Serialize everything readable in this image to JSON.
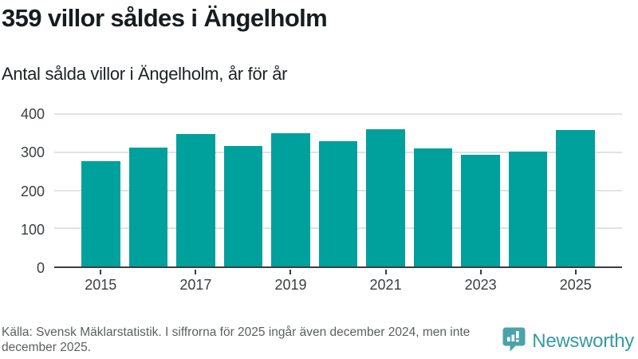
{
  "chart_data": {
    "type": "bar",
    "title": "359 villor såldes i Ängelholm",
    "subtitle": "Antal sålda villor i Ängelholm, år för år",
    "categories": [
      "2015",
      "2016",
      "2017",
      "2018",
      "2019",
      "2020",
      "2021",
      "2022",
      "2023",
      "2024",
      "2025"
    ],
    "values": [
      276,
      313,
      347,
      316,
      350,
      328,
      361,
      311,
      293,
      302,
      359
    ],
    "x_tick_labels": [
      "2015",
      "2017",
      "2019",
      "2021",
      "2023",
      "2025"
    ],
    "yticks": [
      0,
      100,
      200,
      300,
      400
    ],
    "ylim": [
      0,
      400
    ],
    "xlabel": "",
    "ylabel": "",
    "grid": true,
    "legend": "none",
    "bar_color": "#00a09d",
    "axis_color": "#3d3d3d",
    "gridline_color": "#e2e2e2"
  },
  "footer": {
    "source_note": "Källa: Svensk Mäklarstatistik. I siffrorna för 2025 ingår även december 2024, men inte december 2025.",
    "brand": {
      "name": "Newsworthy",
      "text_color": "#339ba2",
      "icon_color": "#4aa3a9",
      "icon": "bar-chart-speech-bubble-icon"
    }
  }
}
